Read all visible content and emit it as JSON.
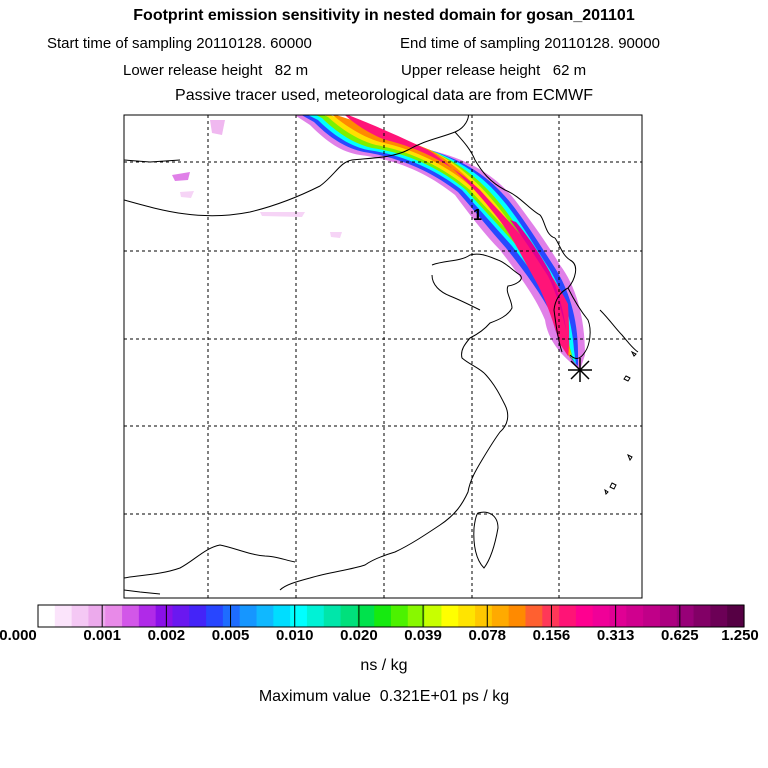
{
  "header": {
    "title": "Footprint emission sensitivity in nested domain for gosan_201101",
    "start_label": "Start time of sampling 20110128. 60000",
    "end_label": "End time of sampling 20110128. 90000",
    "lower_label": "Lower release height   82 m",
    "upper_label": "Upper release height   62 m",
    "note": "Passive tracer used, meteorological data are from ECMWF"
  },
  "map": {
    "marker_label": "1",
    "receptor_icon": "star-icon"
  },
  "colorbar": {
    "tick_labels": [
      "0.000",
      "0.001",
      "0.002",
      "0.005",
      "0.010",
      "0.020",
      "0.039",
      "0.078",
      "0.156",
      "0.313",
      "0.625",
      "1.250"
    ],
    "colors": [
      "#ffffff",
      "#fbe4fb",
      "#f4c8f4",
      "#ecaaec",
      "#e88ae8",
      "#d257e8",
      "#b02ae8",
      "#8a10e8",
      "#6a18f0",
      "#4424f8",
      "#2846ff",
      "#1e6cff",
      "#1696ff",
      "#10b8ff",
      "#00ddff",
      "#00ffff",
      "#00f2d6",
      "#00e6aa",
      "#00e07c",
      "#00e24c",
      "#16ea10",
      "#4cf200",
      "#88f800",
      "#c8ff00",
      "#ffff00",
      "#ffe400",
      "#ffc800",
      "#ffaa00",
      "#ff8a00",
      "#ff6030",
      "#ff3858",
      "#ff1476",
      "#ff0090",
      "#f00098",
      "#e00094",
      "#d0008e",
      "#c00088",
      "#ac0080",
      "#980078",
      "#820066",
      "#6c0056",
      "#560044"
    ],
    "unit": "ns / kg",
    "max_label": "Maximum value  0.321E+01 ps / kg"
  }
}
